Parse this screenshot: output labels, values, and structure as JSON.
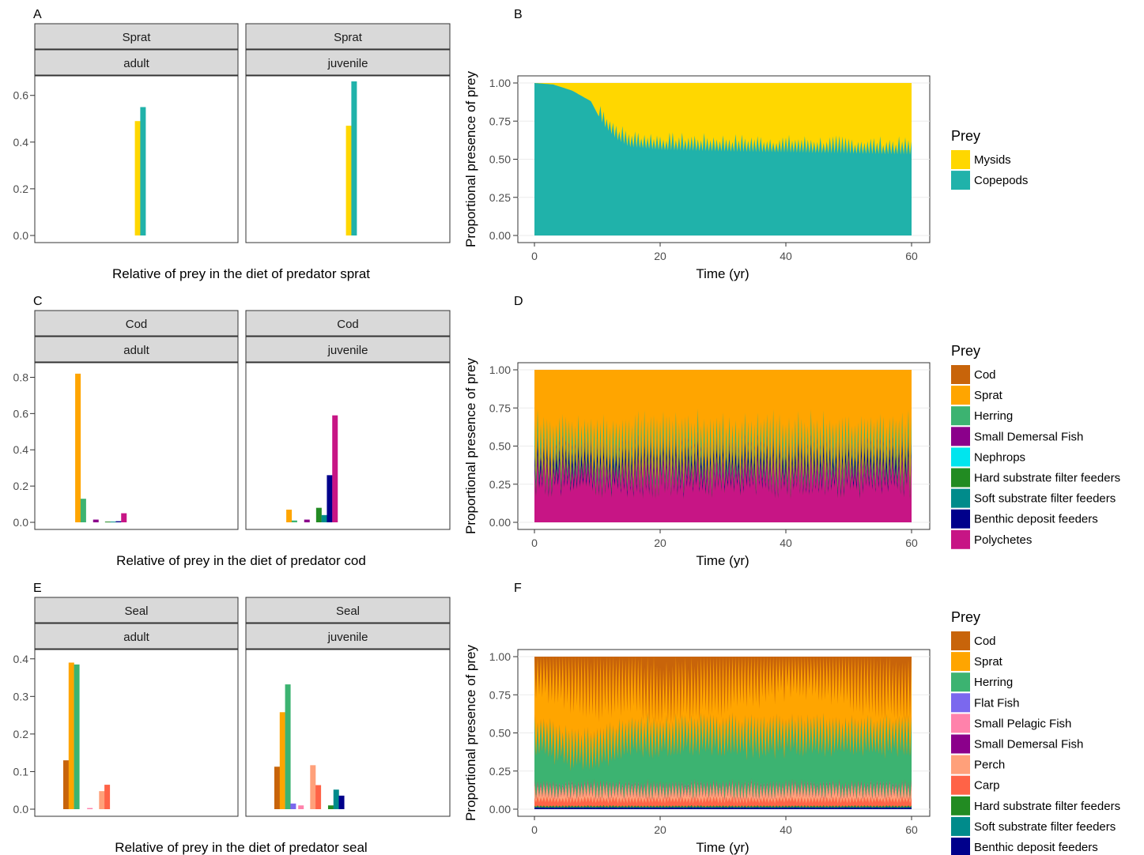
{
  "figure": {
    "background": "#ffffff"
  },
  "colors": {
    "Cod": "#C8640A",
    "Sprat": "#FFA500",
    "Herring": "#3CB371",
    "Small Demersal Fish": "#8B008B",
    "Nephrops": "#00E5EE",
    "Hard substrate filter feeders": "#228B22",
    "Soft substrate filter feeders": "#008B8B",
    "Benthic deposit feeders": "#00008B",
    "Polychetes": "#C71585",
    "Mysids": "#FFD700",
    "Copepods": "#20B2AA",
    "Flat Fish": "#7B68EE",
    "Small Pelagic Fish": "#FF82AB",
    "Perch": "#FFA07A",
    "Carp": "#FF6347"
  },
  "chart_data": [
    {
      "panel": "A",
      "type": "bar",
      "xlabel": "Relative of prey in the diet of predator sprat",
      "ylim": [
        0,
        0.66
      ],
      "yticks": [
        "0.0",
        "0.2",
        "0.4",
        "0.6"
      ],
      "ytick_values": [
        0,
        0.2,
        0.4,
        0.6
      ],
      "facets": [
        {
          "strip_top": "Sprat",
          "strip_bottom": "adult",
          "bars": [
            {
              "prey": "Mysids",
              "value": 0.49,
              "slot": 6.0
            },
            {
              "prey": "Copepods",
              "value": 0.55,
              "slot": 6.45
            }
          ]
        },
        {
          "strip_top": "Sprat",
          "strip_bottom": "juvenile",
          "bars": [
            {
              "prey": "Mysids",
              "value": 0.47,
              "slot": 6.0
            },
            {
              "prey": "Copepods",
              "value": 0.66,
              "slot": 6.45
            }
          ]
        }
      ]
    },
    {
      "panel": "B",
      "type": "area",
      "xlabel": "Time (yr)",
      "ylabel": "Proportional presence of prey",
      "xlim": [
        0,
        60
      ],
      "ylim": [
        0,
        1
      ],
      "xticks": [
        "0",
        "20",
        "40",
        "60"
      ],
      "xtick_values": [
        0,
        20,
        40,
        60
      ],
      "yticks": [
        "0.00",
        "0.25",
        "0.50",
        "0.75",
        "1.00"
      ],
      "ytick_values": [
        0,
        0.25,
        0.5,
        0.75,
        1.0
      ],
      "legend_title": "Prey",
      "legend_position": "right",
      "series": [
        {
          "name": "Copepods",
          "base_curve": [
            [
              0,
              1.0
            ],
            [
              3,
              0.99
            ],
            [
              6,
              0.95
            ],
            [
              9,
              0.88
            ],
            [
              11,
              0.72
            ],
            [
              13,
              0.63
            ],
            [
              15,
              0.58
            ],
            [
              20,
              0.56
            ],
            [
              30,
              0.55
            ],
            [
              45,
              0.54
            ],
            [
              60,
              0.53
            ]
          ],
          "spike_amplitude": 0.12,
          "spike_period": 1.2
        },
        {
          "name": "Mysids",
          "note_fill_to": 1.0
        }
      ],
      "legend": [
        "Mysids",
        "Copepods"
      ]
    },
    {
      "panel": "C",
      "type": "bar",
      "xlabel": "Relative of prey in the diet of predator cod",
      "ylim": [
        0,
        0.85
      ],
      "yticks": [
        "0.0",
        "0.2",
        "0.4",
        "0.6",
        "0.8"
      ],
      "ytick_values": [
        0,
        0.2,
        0.4,
        0.6,
        0.8
      ],
      "facets": [
        {
          "strip_top": "Cod",
          "strip_bottom": "adult",
          "bars": [
            {
              "prey": "Sprat",
              "value": 0.82,
              "slot": 1.0
            },
            {
              "prey": "Herring",
              "value": 0.13,
              "slot": 1.45
            },
            {
              "prey": "Small Demersal Fish",
              "value": 0.015,
              "slot": 2.5
            },
            {
              "prey": "Hard substrate filter feeders",
              "value": 0.004,
              "slot": 3.5
            },
            {
              "prey": "Soft substrate filter feeders",
              "value": 0.004,
              "slot": 3.95
            },
            {
              "prey": "Benthic deposit feeders",
              "value": 0.006,
              "slot": 4.4
            },
            {
              "prey": "Polychetes",
              "value": 0.05,
              "slot": 4.85
            }
          ]
        },
        {
          "strip_top": "Cod",
          "strip_bottom": "juvenile",
          "bars": [
            {
              "prey": "Sprat",
              "value": 0.07,
              "slot": 1.0
            },
            {
              "prey": "Herring",
              "value": 0.01,
              "slot": 1.45
            },
            {
              "prey": "Small Demersal Fish",
              "value": 0.015,
              "slot": 2.5
            },
            {
              "prey": "Hard substrate filter feeders",
              "value": 0.08,
              "slot": 3.5
            },
            {
              "prey": "Soft substrate filter feeders",
              "value": 0.04,
              "slot": 3.95
            },
            {
              "prey": "Benthic deposit feeders",
              "value": 0.26,
              "slot": 4.4
            },
            {
              "prey": "Polychetes",
              "value": 0.59,
              "slot": 4.85
            }
          ]
        }
      ]
    },
    {
      "panel": "D",
      "type": "area",
      "xlabel": "Time (yr)",
      "ylabel": "Proportional presence of prey",
      "xlim": [
        0,
        60
      ],
      "ylim": [
        0,
        1
      ],
      "xticks": [
        "0",
        "20",
        "40",
        "60"
      ],
      "xtick_values": [
        0,
        20,
        40,
        60
      ],
      "yticks": [
        "0.00",
        "0.25",
        "0.50",
        "0.75",
        "1.00"
      ],
      "ytick_values": [
        0,
        0.25,
        0.5,
        0.75,
        1.0
      ],
      "legend_title": "Prey",
      "legend_position": "right",
      "series_stack_bottom_to_top": [
        {
          "name": "Polychetes",
          "mean": 0.3,
          "amp": 0.15
        },
        {
          "name": "Benthic deposit feeders",
          "mean": 0.06,
          "amp": 0.04
        },
        {
          "name": "Soft substrate filter feeders",
          "mean": 0.01,
          "amp": 0.005
        },
        {
          "name": "Hard substrate filter feeders",
          "mean": 0.01,
          "amp": 0.005
        },
        {
          "name": "Nephrops",
          "mean": 0.005,
          "amp": 0.003
        },
        {
          "name": "Small Demersal Fish",
          "mean": 0.02,
          "amp": 0.01
        },
        {
          "name": "Herring",
          "mean": 0.08,
          "amp": 0.07
        },
        {
          "name": "Sprat",
          "note_fill_to": 1.0
        }
      ],
      "legend": [
        "Cod",
        "Sprat",
        "Herring",
        "Small Demersal Fish",
        "Nephrops",
        "Hard substrate filter feeders",
        "Soft substrate filter feeders",
        "Benthic deposit feeders",
        "Polychetes"
      ]
    },
    {
      "panel": "E",
      "type": "bar",
      "xlabel": "Relative of prey in the diet of predator seal",
      "ylim": [
        0,
        0.41
      ],
      "yticks": [
        "0.0",
        "0.1",
        "0.2",
        "0.3",
        "0.4"
      ],
      "ytick_values": [
        0,
        0.1,
        0.2,
        0.3,
        0.4
      ],
      "facets": [
        {
          "strip_top": "Seal",
          "strip_bottom": "adult",
          "bars": [
            {
              "prey": "Cod",
              "value": 0.13,
              "slot": 0.0
            },
            {
              "prey": "Sprat",
              "value": 0.39,
              "slot": 0.45
            },
            {
              "prey": "Herring",
              "value": 0.385,
              "slot": 0.9
            },
            {
              "prey": "Small Pelagic Fish",
              "value": 0.003,
              "slot": 2.0
            },
            {
              "prey": "Perch",
              "value": 0.048,
              "slot": 3.0
            },
            {
              "prey": "Carp",
              "value": 0.065,
              "slot": 3.45
            }
          ]
        },
        {
          "strip_top": "Seal",
          "strip_bottom": "juvenile",
          "bars": [
            {
              "prey": "Cod",
              "value": 0.113,
              "slot": 0.0
            },
            {
              "prey": "Sprat",
              "value": 0.258,
              "slot": 0.45
            },
            {
              "prey": "Herring",
              "value": 0.332,
              "slot": 0.9
            },
            {
              "prey": "Flat Fish",
              "value": 0.015,
              "slot": 1.35
            },
            {
              "prey": "Small Pelagic Fish",
              "value": 0.01,
              "slot": 2.0
            },
            {
              "prey": "Perch",
              "value": 0.117,
              "slot": 3.0
            },
            {
              "prey": "Carp",
              "value": 0.064,
              "slot": 3.45
            },
            {
              "prey": "Hard substrate filter feeders",
              "value": 0.01,
              "slot": 4.5
            },
            {
              "prey": "Soft substrate filter feeders",
              "value": 0.052,
              "slot": 4.95
            },
            {
              "prey": "Benthic deposit feeders",
              "value": 0.036,
              "slot": 5.4
            }
          ]
        }
      ]
    },
    {
      "panel": "F",
      "type": "area",
      "xlabel": "Time (yr)",
      "ylabel": "Proportional presence of prey",
      "xlim": [
        0,
        60
      ],
      "ylim": [
        0,
        1
      ],
      "xticks": [
        "0",
        "20",
        "40",
        "60"
      ],
      "xtick_values": [
        0,
        20,
        40,
        60
      ],
      "yticks": [
        "0.00",
        "0.25",
        "0.50",
        "0.75",
        "1.00"
      ],
      "ytick_values": [
        0,
        0.25,
        0.5,
        0.75,
        1.0
      ],
      "legend_title": "Prey",
      "legend_position": "right",
      "series_stack_bottom_to_top": [
        {
          "name": "Benthic deposit feeders",
          "mean": 0.01,
          "amp": 0.003
        },
        {
          "name": "Soft substrate filter feeders",
          "mean": 0.005,
          "amp": 0.002
        },
        {
          "name": "Hard substrate filter feeders",
          "mean": 0.005,
          "amp": 0.002
        },
        {
          "name": "Carp",
          "mean": 0.04,
          "amp": 0.02
        },
        {
          "name": "Perch",
          "mean": 0.06,
          "amp": 0.04
        },
        {
          "name": "Small Demersal Fish",
          "mean": 0.005,
          "amp": 0.002
        },
        {
          "name": "Small Pelagic Fish",
          "mean": 0.005,
          "amp": 0.002
        },
        {
          "name": "Flat Fish",
          "mean": 0.005,
          "amp": 0.002
        },
        {
          "name": "Herring",
          "mean": 0.35,
          "amp": 0.1
        },
        {
          "name": "Sprat",
          "mean": 0.37,
          "amp": 0.1
        },
        {
          "name": "Cod",
          "note_fill_to": 1.0
        }
      ],
      "legend": [
        "Cod",
        "Sprat",
        "Herring",
        "Flat Fish",
        "Small Pelagic Fish",
        "Small Demersal Fish",
        "Perch",
        "Carp",
        "Hard substrate filter feeders",
        "Soft substrate filter feeders",
        "Benthic deposit feeders"
      ]
    }
  ]
}
